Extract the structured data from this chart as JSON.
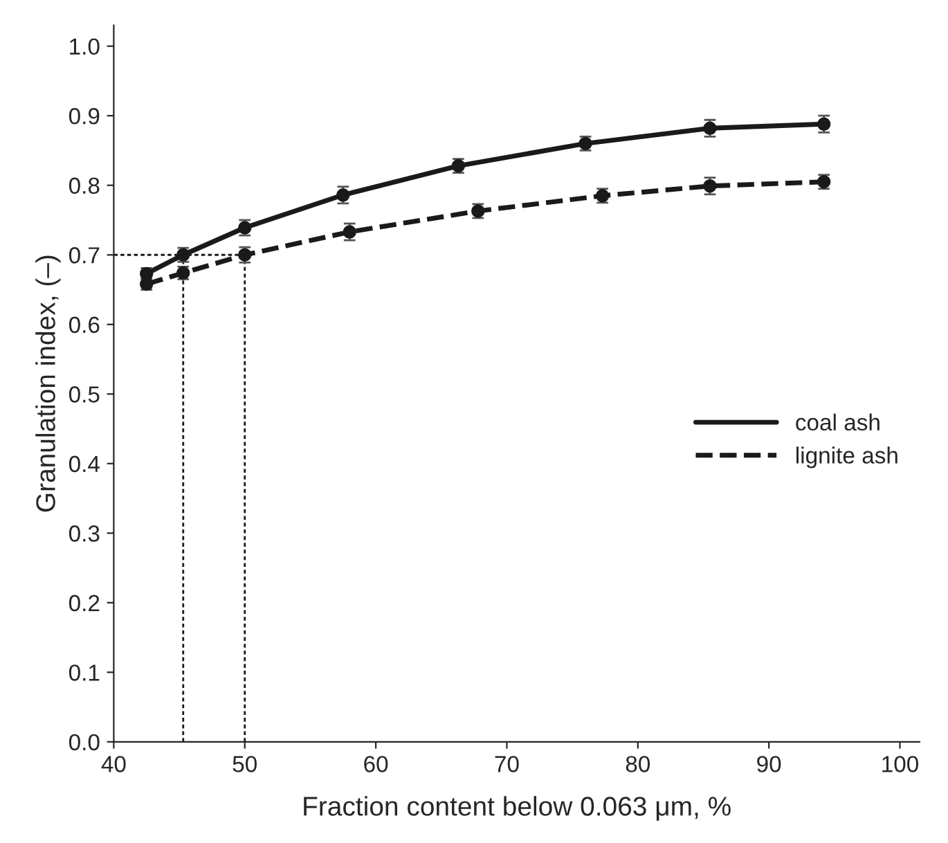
{
  "chart_data": {
    "type": "line",
    "xlabel": "Fraction content below 0.063 μm, %",
    "ylabel": "Granulation index, (–)",
    "xlim": [
      40,
      101.5
    ],
    "xticks": [
      40,
      50,
      60,
      70,
      80,
      90,
      100
    ],
    "ylim": [
      0,
      1.03
    ],
    "yticks": [
      {
        "value": 0,
        "label": "0.0"
      },
      0.1,
      0.2,
      0.3,
      0.4,
      0.5,
      0.6,
      0.7,
      0.8,
      0.9,
      {
        "value": 1,
        "label": "1.0"
      }
    ],
    "marker": "circle",
    "grid": false,
    "legend": "right",
    "series": [
      {
        "name": "coal ash",
        "color": "#1a1a1a",
        "line_style": "solid",
        "x": [
          42.5,
          45.3,
          50,
          57.5,
          66.3,
          76,
          85.5,
          94.2
        ],
        "values": [
          0.673,
          0.7,
          0.739,
          0.786,
          0.828,
          0.86,
          0.882,
          0.888
        ],
        "errors": [
          0.008,
          0.01,
          0.011,
          0.012,
          0.01,
          0.01,
          0.012,
          0.012
        ]
      },
      {
        "name": "lignite ash",
        "color": "#1a1a1a",
        "line_style": "dashed",
        "x": [
          42.5,
          45.3,
          50,
          58,
          67.8,
          77.3,
          85.5,
          94.2
        ],
        "values": [
          0.658,
          0.674,
          0.7,
          0.733,
          0.763,
          0.785,
          0.799,
          0.805
        ],
        "errors": [
          0.008,
          0.009,
          0.011,
          0.012,
          0.01,
          0.01,
          0.012,
          0.01
        ]
      }
    ],
    "ref_lines": [
      {
        "axis": "y",
        "value": 0.7,
        "line_style": "dotted",
        "color": "#1a1a1a"
      },
      {
        "axis": "x",
        "value": 45.3,
        "line_style": "dotted",
        "color": "#1a1a1a"
      },
      {
        "axis": "x",
        "value": 50,
        "line_style": "dotted",
        "color": "#1a1a1a"
      }
    ]
  }
}
